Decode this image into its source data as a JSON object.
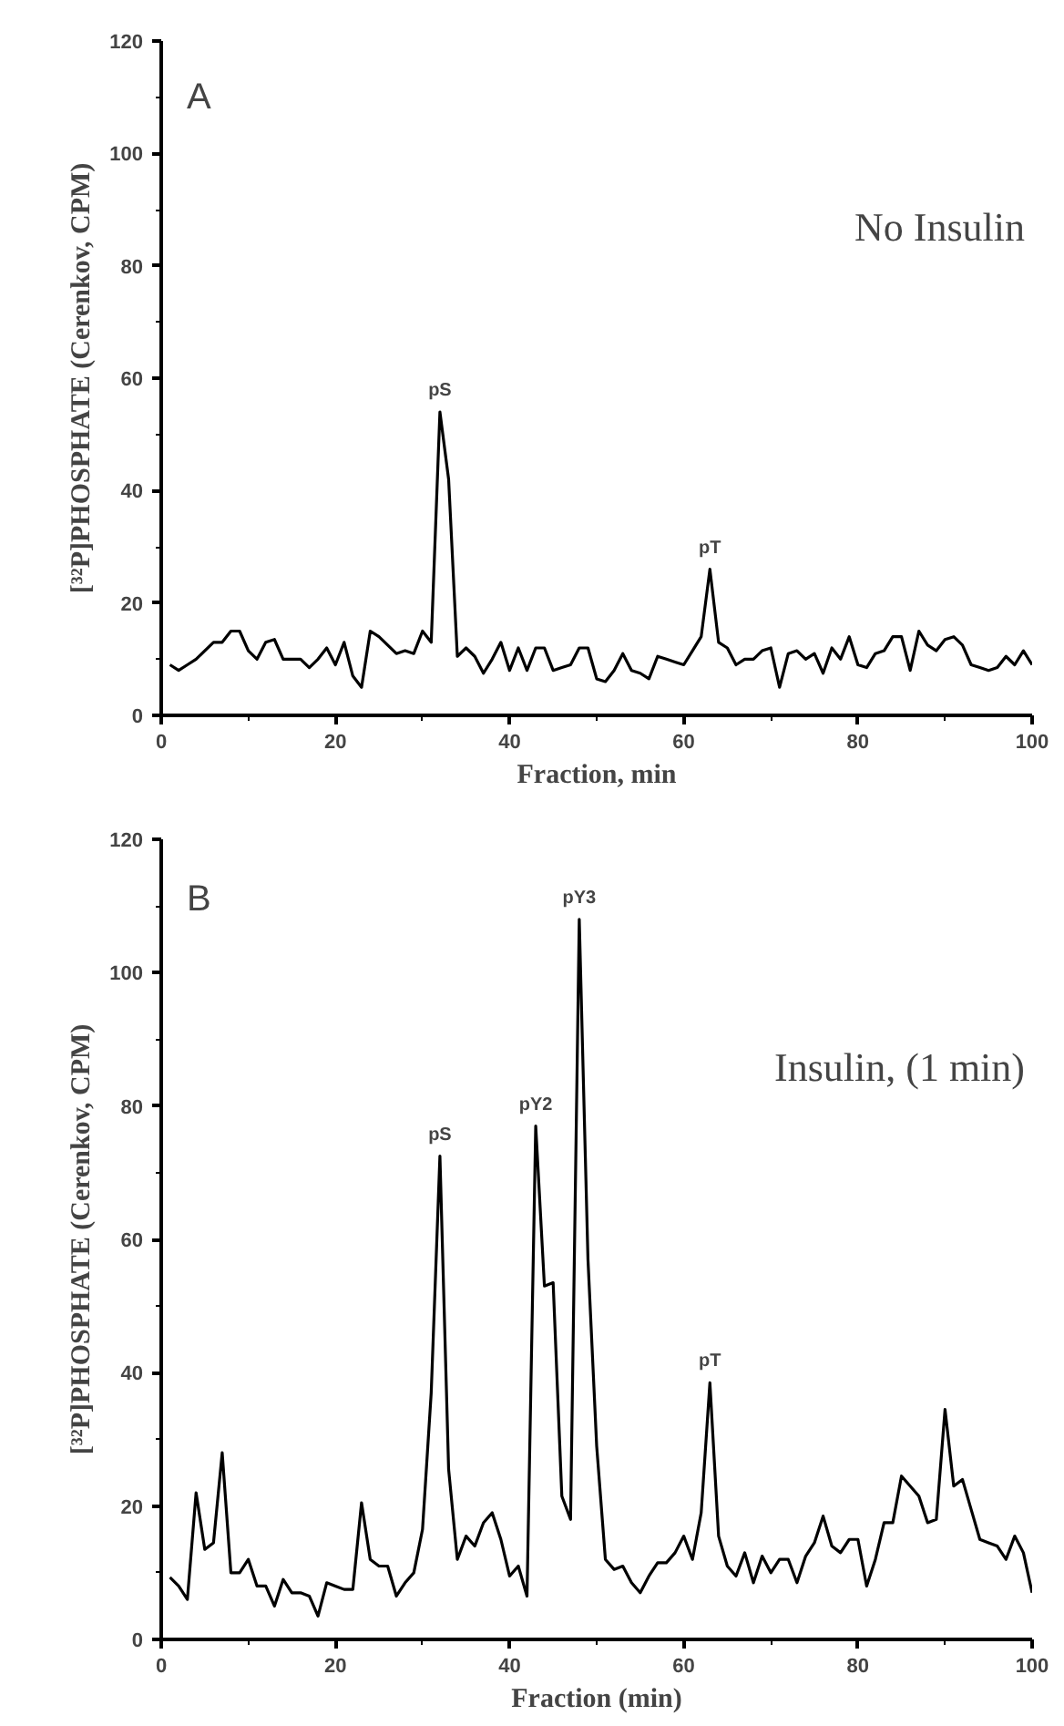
{
  "chart_data": [
    {
      "type": "line",
      "xlabel": "Fraction, min",
      "ylabel": "[³²P]PHOSPHATE (Cerenkov, CPM)",
      "annotations": [
        "A",
        "No Insulin",
        {
          "text": "pS",
          "x": 32,
          "y": 54
        },
        {
          "text": "pT",
          "x": 63,
          "y": 26
        }
      ],
      "x": [
        1,
        2,
        3,
        4,
        5,
        6,
        7,
        8,
        9,
        10,
        11,
        12,
        13,
        14,
        15,
        16,
        17,
        18,
        19,
        20,
        21,
        22,
        23,
        24,
        25,
        26,
        27,
        28,
        29,
        30,
        31,
        32,
        33,
        34,
        35,
        36,
        37,
        38,
        39,
        40,
        41,
        42,
        43,
        44,
        45,
        46,
        47,
        48,
        49,
        50,
        51,
        52,
        53,
        54,
        55,
        56,
        57,
        58,
        59,
        60,
        61,
        62,
        63,
        64,
        65,
        66,
        67,
        68,
        69,
        70,
        71,
        72,
        73,
        74,
        75,
        76,
        77,
        78,
        79,
        80,
        81,
        82,
        83,
        84,
        85,
        86,
        87,
        88,
        89,
        90,
        91,
        92,
        93,
        94,
        95,
        96,
        97,
        98,
        99,
        100
      ],
      "series": [
        {
          "color": "#000000",
          "values": [
            9,
            8,
            9,
            10,
            11.5,
            13,
            13,
            15,
            15,
            11.5,
            10,
            13,
            13.5,
            10,
            10,
            10,
            8.5,
            10,
            12,
            9,
            13,
            7,
            5,
            15,
            14,
            12.5,
            11,
            11.5,
            11,
            15,
            13,
            54,
            42,
            10.5,
            12,
            10.5,
            7.5,
            10,
            13,
            8,
            12,
            8,
            12,
            12,
            8,
            8.5,
            9,
            12,
            12,
            6.5,
            6,
            8,
            11,
            8,
            7.5,
            6.5,
            10.5,
            10,
            9.5,
            9,
            11.5,
            14,
            26,
            13,
            12,
            9,
            10,
            10,
            11.5,
            12,
            5,
            11,
            11.5,
            10,
            11,
            7.5,
            12,
            10,
            14,
            9,
            8.5,
            11,
            11.5,
            14,
            14,
            8,
            15,
            12.5,
            11.5,
            13.5,
            14,
            12.5,
            9,
            8.5,
            8,
            8.5,
            10.5,
            9,
            11.5,
            9
          ]
        }
      ],
      "xlim": [
        0,
        100
      ],
      "ylim": [
        0,
        120
      ],
      "xticks": [
        0,
        20,
        40,
        60,
        80,
        100
      ],
      "yticks": [
        0,
        20,
        40,
        60,
        80,
        100,
        120
      ],
      "grid": false,
      "marker": "none",
      "line_style": "solid"
    },
    {
      "type": "line",
      "xlabel": "Fraction (min)",
      "ylabel": "[³²P]PHOSPHATE (Cerenkov, CPM)",
      "annotations": [
        "B",
        "Insulin, (1 min)",
        {
          "text": "pS",
          "x": 32,
          "y": 72.5
        },
        {
          "text": "pY2",
          "x": 43,
          "y": 77
        },
        {
          "text": "pY3",
          "x": 48,
          "y": 108
        },
        {
          "text": "pT",
          "x": 63,
          "y": 38.5
        }
      ],
      "x": [
        1,
        2,
        3,
        4,
        5,
        6,
        7,
        8,
        9,
        10,
        11,
        12,
        13,
        14,
        15,
        16,
        17,
        18,
        19,
        20,
        21,
        22,
        23,
        24,
        25,
        26,
        27,
        28,
        29,
        30,
        31,
        32,
        33,
        34,
        35,
        36,
        37,
        38,
        39,
        40,
        41,
        42,
        43,
        44,
        45,
        46,
        47,
        48,
        49,
        50,
        51,
        52,
        53,
        54,
        55,
        56,
        57,
        58,
        59,
        60,
        61,
        62,
        63,
        64,
        65,
        66,
        67,
        68,
        69,
        70,
        71,
        72,
        73,
        74,
        75,
        76,
        77,
        78,
        79,
        80,
        81,
        82,
        83,
        84,
        85,
        86,
        87,
        88,
        89,
        90,
        91,
        92,
        93,
        94,
        95,
        96,
        97,
        98,
        99,
        100
      ],
      "series": [
        {
          "color": "#000000",
          "values": [
            9.3,
            8,
            6,
            22,
            13.5,
            14.5,
            28,
            10,
            10,
            12,
            8,
            8,
            5,
            9,
            7,
            7,
            6.5,
            3.5,
            8.5,
            8,
            7.5,
            7.5,
            20.5,
            12,
            11,
            11,
            6.5,
            8.5,
            10,
            16.5,
            37,
            72.5,
            25.5,
            12,
            15.5,
            14,
            17.5,
            19,
            15,
            9.5,
            11,
            6.5,
            77,
            53,
            53.5,
            21.5,
            18,
            108,
            57,
            29,
            12,
            10.5,
            11,
            8.5,
            7,
            9.5,
            11.5,
            11.5,
            13,
            15.5,
            12,
            19,
            38.5,
            15.5,
            11,
            9.5,
            13,
            8.5,
            12.5,
            10,
            12,
            12,
            8.5,
            12.5,
            14.5,
            18.5,
            14,
            13,
            15,
            15,
            8,
            12,
            17.5,
            17.5,
            24.5,
            23,
            21.5,
            17.5,
            18,
            34.5,
            23,
            24,
            19.5,
            15,
            14.5,
            14,
            12,
            15.5,
            13,
            7
          ]
        }
      ],
      "xlim": [
        0,
        100
      ],
      "ylim": [
        0,
        120
      ],
      "xticks": [
        0,
        20,
        40,
        60,
        80,
        100
      ],
      "yticks": [
        0,
        20,
        40,
        60,
        80,
        100,
        120
      ],
      "grid": false,
      "marker": "none",
      "line_style": "solid"
    }
  ]
}
